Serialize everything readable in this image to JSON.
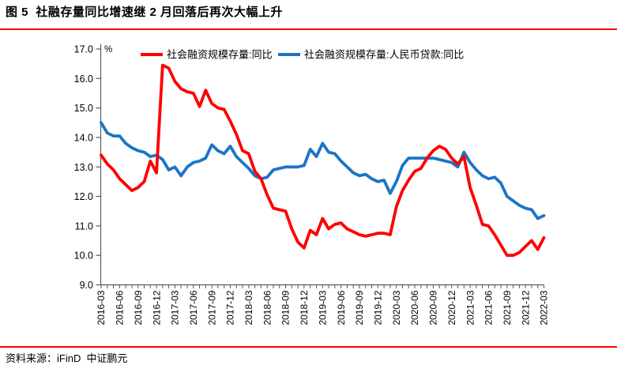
{
  "figure": {
    "title": "图 5  社融存量同比增速继 2 月回落后再次大幅上升",
    "source": "资料来源：iFinD  中证鹏元",
    "accent_rule_color": "#fe0000"
  },
  "chart_data": {
    "type": "line",
    "unit_label": "%",
    "ylim": [
      9.0,
      17.0
    ],
    "ytick_step": 1.0,
    "ytick_labels": [
      "17.0",
      "16.0",
      "15.0",
      "14.0",
      "13.0",
      "12.0",
      "11.0",
      "10.0",
      "9.0"
    ],
    "x_frequency": "monthly",
    "x_range": [
      "2016-03",
      "2022-03"
    ],
    "xtick_labels": [
      "2016-03",
      "2016-06",
      "2016-09",
      "2016-12",
      "2017-03",
      "2017-06",
      "2017-09",
      "2017-12",
      "2018-03",
      "2018-06",
      "2018-09",
      "2018-12",
      "2019-03",
      "2019-06",
      "2019-09",
      "2019-12",
      "2020-03",
      "2020-06",
      "2020-09",
      "2020-12",
      "2021-03",
      "2021-06",
      "2021-09",
      "2021-12",
      "2022-03"
    ],
    "grid": false,
    "legend_position": "top",
    "axis_color": "#595959",
    "series": [
      {
        "name": "社会融资规模存量:同比",
        "color": "#fe0000",
        "values": [
          13.4,
          13.1,
          12.9,
          12.6,
          12.4,
          12.2,
          12.3,
          12.5,
          13.2,
          12.8,
          16.45,
          16.35,
          15.9,
          15.65,
          15.55,
          15.5,
          15.05,
          15.6,
          15.15,
          15.0,
          14.95,
          14.55,
          14.1,
          13.55,
          13.45,
          12.85,
          12.6,
          12.05,
          11.6,
          11.55,
          11.5,
          10.9,
          10.45,
          10.25,
          10.85,
          10.7,
          11.25,
          10.9,
          11.05,
          11.1,
          10.9,
          10.8,
          10.7,
          10.65,
          10.7,
          10.75,
          10.75,
          10.7,
          11.65,
          12.2,
          12.55,
          12.85,
          12.95,
          13.3,
          13.55,
          13.7,
          13.6,
          13.3,
          13.1,
          13.35,
          12.3,
          11.7,
          11.05,
          11.0,
          10.7,
          10.35,
          10.0,
          10.0,
          10.1,
          10.3,
          10.5,
          10.2,
          10.6
        ]
      },
      {
        "name": "社会融资规模存量:人民币贷款:同比",
        "color": "#1b75c5",
        "values": [
          14.5,
          14.15,
          14.05,
          14.05,
          13.8,
          13.65,
          13.55,
          13.5,
          13.35,
          13.4,
          13.25,
          12.9,
          13.0,
          12.7,
          13.0,
          13.15,
          13.2,
          13.3,
          13.75,
          13.55,
          13.45,
          13.7,
          13.35,
          13.15,
          12.95,
          12.7,
          12.6,
          12.65,
          12.9,
          12.95,
          13.0,
          13.0,
          13.0,
          13.05,
          13.6,
          13.35,
          13.8,
          13.5,
          13.45,
          13.2,
          13.0,
          12.8,
          12.7,
          12.75,
          12.6,
          12.5,
          12.55,
          12.1,
          12.5,
          13.05,
          13.3,
          13.3,
          13.3,
          13.3,
          13.3,
          13.25,
          13.2,
          13.15,
          13.0,
          13.5,
          13.15,
          12.9,
          12.7,
          12.6,
          12.65,
          12.45,
          12.0,
          11.85,
          11.7,
          11.6,
          11.55,
          11.25,
          11.35
        ]
      }
    ]
  }
}
